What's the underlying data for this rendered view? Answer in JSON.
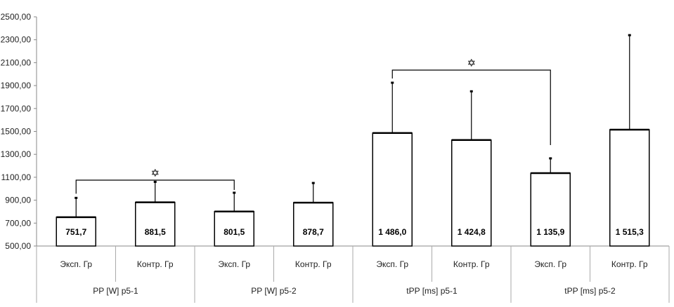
{
  "chart_data": {
    "type": "bar",
    "ylim": [
      500,
      2500
    ],
    "y_ticks": [
      "500,00",
      "700,00",
      "900,00",
      "1100,00",
      "1300,00",
      "1500,00",
      "1700,00",
      "1900,00",
      "2100,00",
      "2300,00",
      "2500,00"
    ],
    "grid": false,
    "categories": [
      "Эксп. Гр",
      "Контр. Гр",
      "Эксп. Гр",
      "Контр. Гр",
      "Эксп. Гр",
      "Контр. Гр",
      "Эксп. Гр",
      "Контр. Гр"
    ],
    "groups": [
      "PP [W] p5-1",
      "PP [W] p5-2",
      "tPP [ms] p5-1",
      "tPP [ms] p5-2"
    ],
    "values": [
      751.7,
      881.5,
      801.5,
      878.7,
      1486.0,
      1424.8,
      1135.9,
      1515.3
    ],
    "value_labels": [
      "751,7",
      "881,5",
      "801,5",
      "878,7",
      "1 486,0",
      "1 424,8",
      "1 135,9",
      "1 515,3"
    ],
    "error_upper": [
      920,
      1060,
      965,
      1050,
      1925,
      1850,
      1265,
      2340
    ],
    "significance": [
      {
        "from": 0,
        "to": 2,
        "symbol": "✡"
      },
      {
        "from": 4,
        "to": 6,
        "symbol": "✡"
      }
    ]
  }
}
